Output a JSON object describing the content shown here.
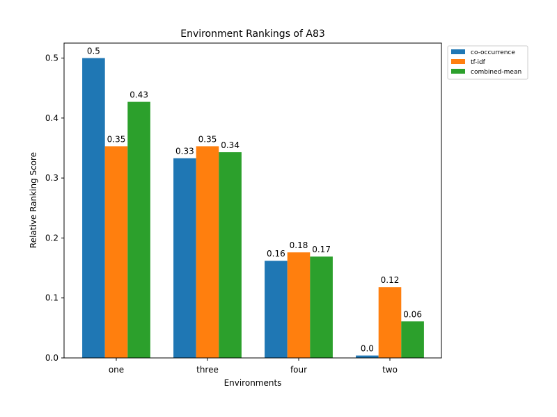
{
  "chart_data": {
    "type": "bar",
    "title": "Environment Rankings of A83",
    "xlabel": "Environments",
    "ylabel": "Relative Ranking Score",
    "categories": [
      "one",
      "three",
      "four",
      "two"
    ],
    "ylim": [
      0,
      0.525
    ],
    "yticks": [
      0.0,
      0.1,
      0.2,
      0.3,
      0.4,
      0.5
    ],
    "ytick_labels": [
      "0.0",
      "0.1",
      "0.2",
      "0.3",
      "0.4",
      "0.5"
    ],
    "grid": false,
    "legend_position": "outside-top-right",
    "series": [
      {
        "name": "co-occurrence",
        "color": "#1f77b4",
        "values": [
          0.5,
          0.333,
          0.162,
          0.004
        ],
        "labels": [
          "0.5",
          "0.33",
          "0.16",
          "0.0"
        ]
      },
      {
        "name": "tf-idf",
        "color": "#ff7f0e",
        "values": [
          0.353,
          0.353,
          0.176,
          0.118
        ],
        "labels": [
          "0.35",
          "0.35",
          "0.18",
          "0.12"
        ]
      },
      {
        "name": "combined-mean",
        "color": "#2ca02c",
        "values": [
          0.427,
          0.343,
          0.169,
          0.061
        ],
        "labels": [
          "0.43",
          "0.34",
          "0.17",
          "0.06"
        ]
      }
    ]
  }
}
